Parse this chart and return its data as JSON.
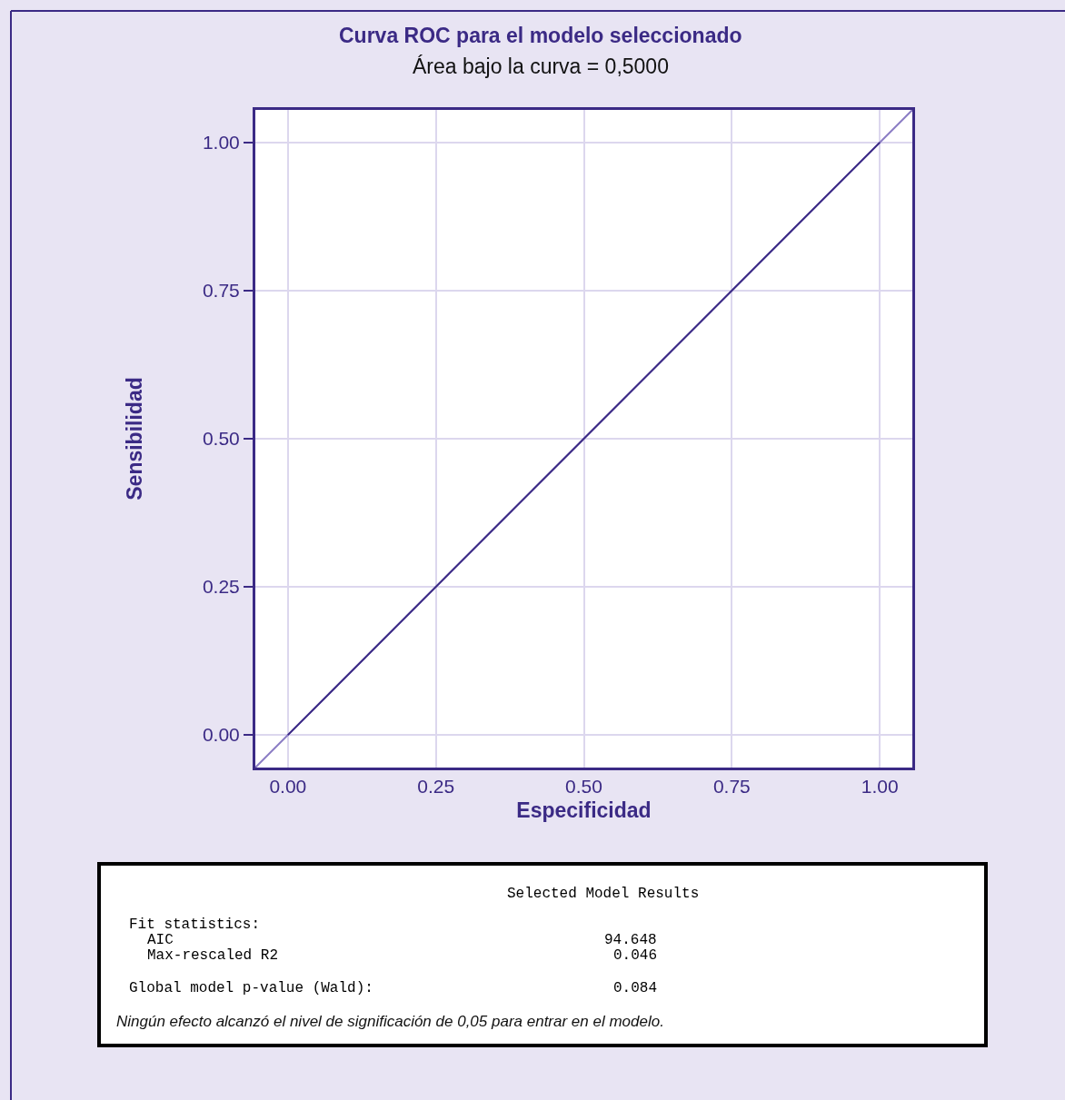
{
  "chart_data": {
    "type": "line",
    "title": "Curva ROC para el modelo seleccionado",
    "subtitle": "Área bajo la curva = 0,5000",
    "xlabel": "Especificidad",
    "ylabel": "Sensibilidad",
    "series": [
      {
        "color": "#8a7cc4",
        "x": [
          -0.055,
          1.055
        ],
        "values": [
          -0.055,
          1.055
        ]
      },
      {
        "color": "#3b2a85",
        "x": [
          0,
          1
        ],
        "values": [
          0,
          1
        ]
      }
    ],
    "xlim": [
      -0.055,
      1.055
    ],
    "ylim": [
      -0.055,
      1.055
    ],
    "xticks": [
      {
        "value": 0,
        "label": "0.00"
      },
      {
        "value": 0.25,
        "label": "0.25"
      },
      {
        "value": 0.5,
        "label": "0.50"
      },
      {
        "value": 0.75,
        "label": "0.75"
      },
      {
        "value": 1,
        "label": "1.00"
      }
    ],
    "yticks": [
      {
        "value": 0,
        "label": "0.00"
      },
      {
        "value": 0.25,
        "label": "0.25"
      },
      {
        "value": 0.5,
        "label": "0.50"
      },
      {
        "value": 0.75,
        "label": "0.75"
      },
      {
        "value": 1,
        "label": "1.00"
      }
    ],
    "grid": true,
    "marker": "none",
    "line_style": "solid",
    "annotations": [
      "Selected Model Results",
      "Fit statistics:",
      "AIC",
      "94.648",
      "Max-rescaled R2",
      "0.046",
      "Global model p-value (Wald):",
      "0.084",
      "Ningún efecto alcanzó el nivel de significación de 0,05 para entrar en el modelo."
    ]
  }
}
